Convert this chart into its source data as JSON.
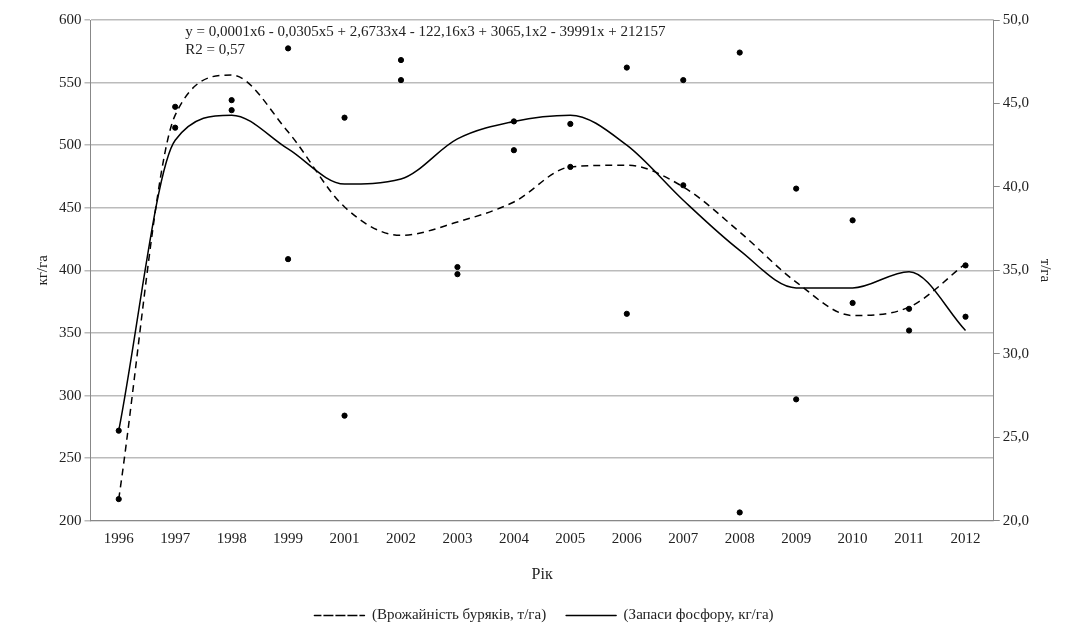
{
  "chart_data": {
    "type": "line",
    "xlabel": "Рік",
    "ylabel": "кг/га",
    "y2label": "т/га",
    "categories": [
      "1996",
      "1997",
      "1998",
      "1999",
      "2001",
      "2002",
      "2003",
      "2004",
      "2005",
      "2006",
      "2007",
      "2008",
      "2009",
      "2010",
      "2011",
      "2012"
    ],
    "ylim": [
      200,
      600
    ],
    "yticks": [
      200,
      250,
      300,
      350,
      400,
      450,
      500,
      550,
      600
    ],
    "y2lim": [
      20,
      50
    ],
    "y2ticks": [
      {
        "value": 20,
        "label": "20,0"
      },
      {
        "value": 25,
        "label": "25,0"
      },
      {
        "value": 30,
        "label": "30,0"
      },
      {
        "value": 35,
        "label": "35,0"
      },
      {
        "value": 40,
        "label": "40,0"
      },
      {
        "value": 45,
        "label": "45,0"
      },
      {
        "value": 50,
        "label": "50,0"
      }
    ],
    "grid": "y",
    "legend": "bottom",
    "annotations": [
      "y = 0,0001x6 - 0,0305x5 + 2,6733x4 - 122,16x3 + 3065,1x2 - 39991x + 212157",
      "R2 = 0,57"
    ],
    "series": [
      {
        "type": "line",
        "name": "(Врожайність буряків, т/га)",
        "axis": "y2",
        "color": "#000000",
        "line_style": "dashed",
        "marker": "none",
        "values": [
          21.3,
          44.3,
          46.7,
          43.3,
          38.8,
          37.1,
          37.9,
          39.1,
          41.2,
          41.3,
          40.0,
          37.3,
          34.3,
          32.3,
          32.8,
          35.4
        ]
      },
      {
        "type": "line",
        "name": "(Запаси фосфору, кг/га)",
        "color": "#000000",
        "line_style": "solid",
        "marker": "none",
        "values": [
          272,
          504,
          524,
          497,
          469,
          473,
          505,
          519,
          524,
          500,
          456,
          416,
          386,
          386,
          399,
          352
        ]
      },
      {
        "type": "scatter",
        "axis": "y2",
        "color": "#000000",
        "marker": "circle",
        "values": [
          21.3,
          44.8,
          45.2,
          48.3,
          26.3,
          47.6,
          35.2,
          42.2,
          41.2,
          32.4,
          40.1,
          20.5,
          39.9,
          38.0,
          32.7,
          35.3
        ]
      },
      {
        "type": "scatter",
        "color": "#000000",
        "marker": "circle",
        "values": [
          272,
          514,
          528,
          409,
          522,
          552,
          397,
          519,
          517,
          562,
          552,
          574,
          297,
          374,
          352,
          363
        ]
      }
    ]
  }
}
